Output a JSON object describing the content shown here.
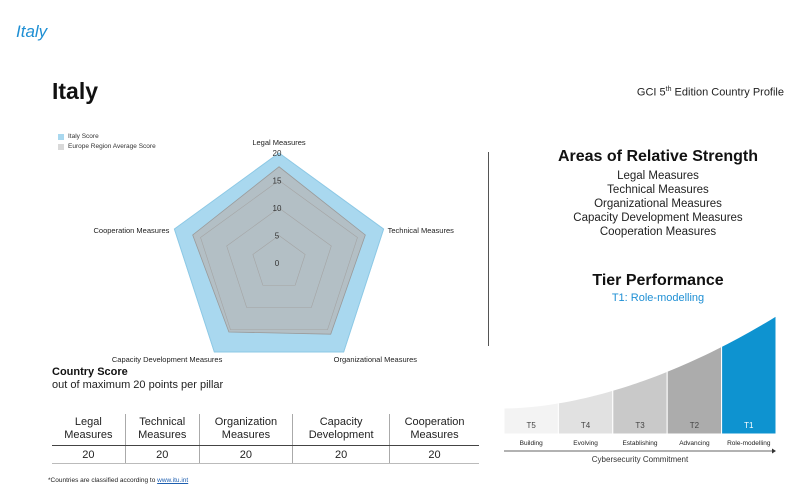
{
  "header": {
    "top_label": "Italy",
    "title": "Italy",
    "edition_prefix": "GCI 5",
    "edition_sup": "th",
    "edition_suffix": " Edition Country Profile"
  },
  "chart_data": {
    "type": "radar",
    "title": "",
    "axes": [
      "Legal Measures",
      "Technical Measures",
      "Organizational Measures",
      "Capacity Development Measures",
      "Cooperation Measures"
    ],
    "ticks": [
      0,
      5,
      10,
      15,
      20
    ],
    "range": [
      0,
      20
    ],
    "series": [
      {
        "name": "Italy Score",
        "values": [
          20,
          20,
          20,
          20,
          20
        ],
        "color": "#a9d8ef"
      },
      {
        "name": "Europe Region Average Score",
        "values": [
          17.5,
          16.5,
          16.0,
          15.5,
          16.5
        ],
        "color": "#b7b7b7"
      }
    ],
    "legend_position": "top-left"
  },
  "strength": {
    "title": "Areas of Relative Strength",
    "items": [
      "Legal Measures",
      "Technical Measures",
      "Organizational Measures",
      "Capacity Development Measures",
      "Cooperation Measures"
    ]
  },
  "tier": {
    "title": "Tier Performance",
    "value": "T1: Role-modelling",
    "steps": [
      {
        "code": "T5",
        "label": "Building",
        "color": "#f3f3f3"
      },
      {
        "code": "T4",
        "label": "Evolving",
        "color": "#e1e1e1"
      },
      {
        "code": "T3",
        "label": "Establishing",
        "color": "#c9c9c9"
      },
      {
        "code": "T2",
        "label": "Advancing",
        "color": "#acacac"
      },
      {
        "code": "T1",
        "label": "Role-modelling",
        "color": "#0e93d0"
      }
    ],
    "active": "T1",
    "axis_label": "Cybersecurity Commitment"
  },
  "country_score": {
    "title": "Country Score",
    "subtitle": "out of maximum 20 points per pillar"
  },
  "score_table": {
    "headers": [
      [
        "Legal",
        "Measures"
      ],
      [
        "Technical",
        "Measures"
      ],
      [
        "Organization",
        "Measures"
      ],
      [
        "Capacity",
        "Development"
      ],
      [
        "Cooperation",
        "Measures"
      ]
    ],
    "values": [
      "20",
      "20",
      "20",
      "20",
      "20"
    ]
  },
  "footnote": {
    "text": "*Countries are classified according to ",
    "link": "www.itu.int"
  }
}
